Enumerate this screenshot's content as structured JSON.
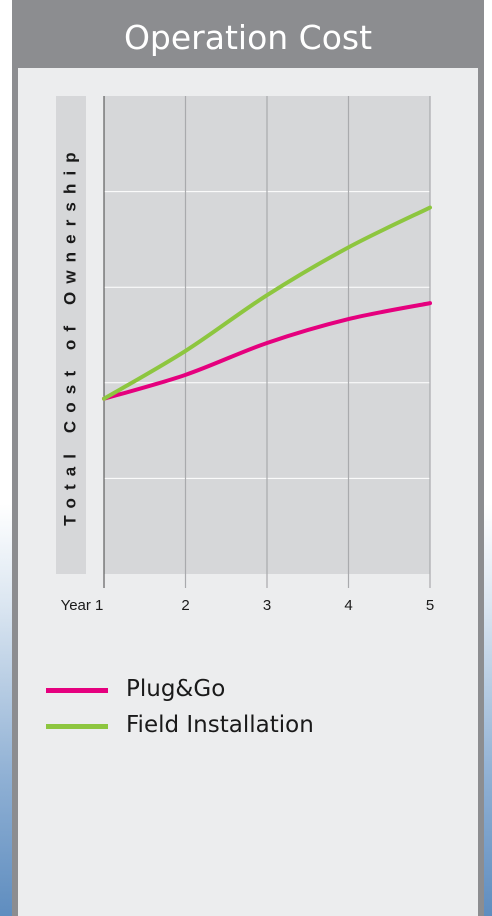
{
  "header": {
    "title": "Operation Cost"
  },
  "colors": {
    "header_bg": "#8c8d90",
    "plot_bg": "#d6d7d9",
    "ylabel_bg": "#d6d7d9",
    "plug_and_go": "#e5007e",
    "field_installation": "#8dc63f"
  },
  "chart_data": {
    "type": "line",
    "title": "Operation Cost",
    "xlabel": "",
    "ylabel": "Total Cost of Ownership",
    "x": [
      "Year 1",
      "2",
      "3",
      "4",
      "5"
    ],
    "series": [
      {
        "name": "Plug&Go",
        "values": [
          2.2,
          2.5,
          2.9,
          3.2,
          3.4
        ]
      },
      {
        "name": "Field Installation",
        "values": [
          2.2,
          2.8,
          3.5,
          4.1,
          4.6
        ]
      }
    ],
    "ylim": [
      0,
      6
    ],
    "y_ticks_labeled": false,
    "grid": true,
    "legend_position": "bottom-left"
  }
}
